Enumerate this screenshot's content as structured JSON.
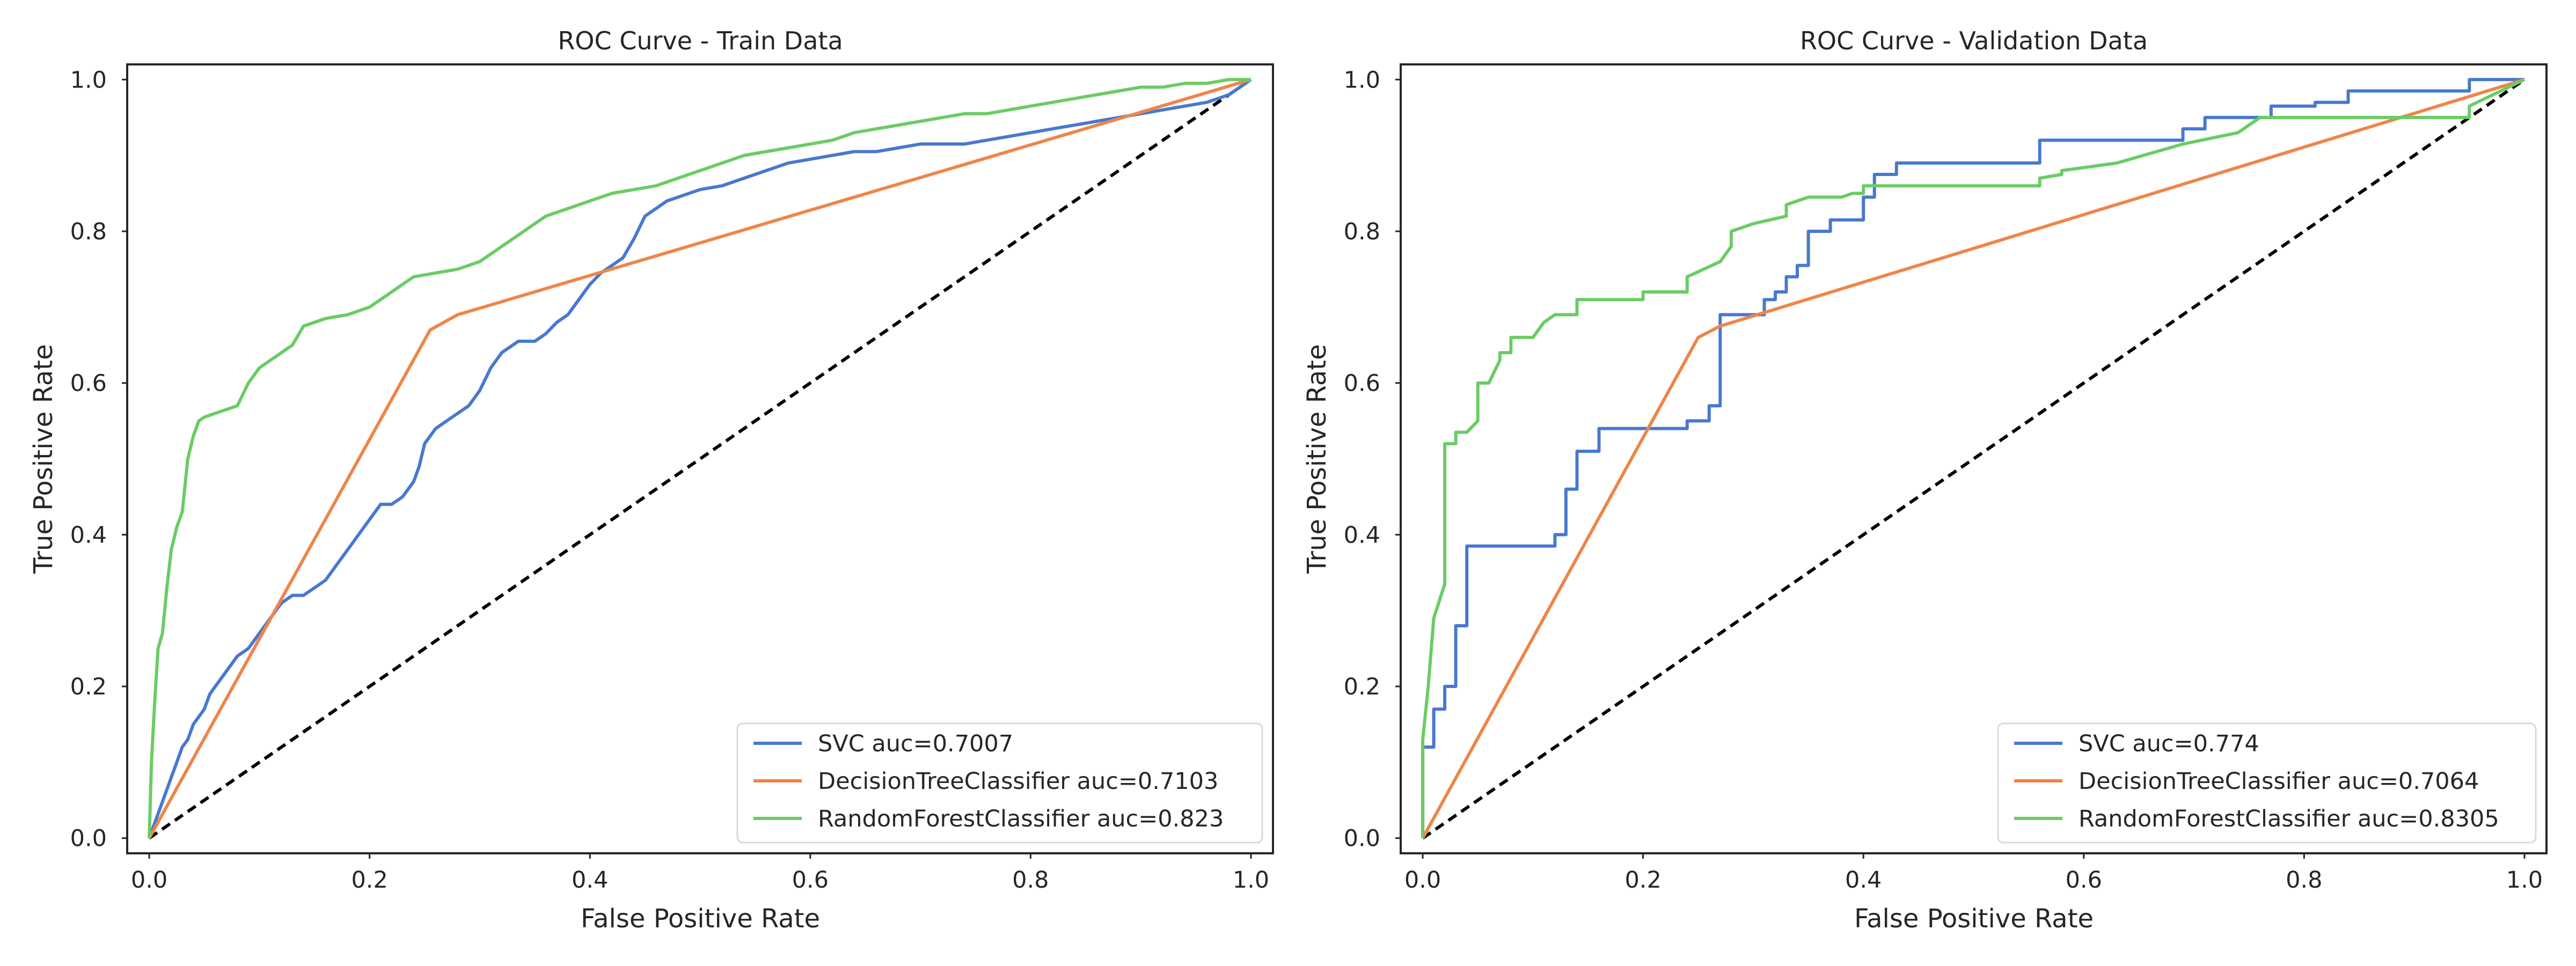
{
  "figure": {
    "colors": {
      "SVC": "#4878d0",
      "DecisionTreeClassifier": "#ee854a",
      "RandomForestClassifier": "#6acc64",
      "reference": "#000000",
      "axes": "#262626"
    }
  },
  "chart_data": [
    {
      "type": "line",
      "title": "ROC Curve - Train Data",
      "xlabel": "False Positive Rate",
      "ylabel": "True Positive Rate",
      "xlim": [
        -0.02,
        1.02
      ],
      "ylim": [
        -0.02,
        1.02
      ],
      "xticks": [
        "0.0",
        "0.2",
        "0.4",
        "0.6",
        "0.8",
        "1.0"
      ],
      "yticks": [
        "0.0",
        "0.2",
        "0.4",
        "0.6",
        "0.8",
        "1.0"
      ],
      "grid": false,
      "legend_position": "lower-right",
      "reference_line": {
        "x": [
          0,
          1
        ],
        "y": [
          0,
          1
        ],
        "style": "dashed"
      },
      "series": [
        {
          "name": "SVC auc=0.7007",
          "x": [
            0.0,
            0.005,
            0.01,
            0.015,
            0.02,
            0.025,
            0.03,
            0.035,
            0.04,
            0.045,
            0.05,
            0.055,
            0.06,
            0.07,
            0.08,
            0.09,
            0.1,
            0.11,
            0.12,
            0.13,
            0.14,
            0.15,
            0.16,
            0.17,
            0.18,
            0.19,
            0.2,
            0.21,
            0.22,
            0.23,
            0.24,
            0.245,
            0.25,
            0.26,
            0.27,
            0.28,
            0.29,
            0.3,
            0.31,
            0.32,
            0.33,
            0.335,
            0.34,
            0.35,
            0.36,
            0.37,
            0.38,
            0.39,
            0.4,
            0.41,
            0.42,
            0.43,
            0.44,
            0.45,
            0.46,
            0.47,
            0.48,
            0.49,
            0.5,
            0.52,
            0.54,
            0.56,
            0.58,
            0.6,
            0.62,
            0.64,
            0.66,
            0.68,
            0.7,
            0.72,
            0.74,
            0.76,
            0.78,
            0.8,
            0.82,
            0.84,
            0.86,
            0.88,
            0.9,
            0.92,
            0.94,
            0.96,
            0.98,
            1.0
          ],
          "y": [
            0.0,
            0.02,
            0.04,
            0.06,
            0.08,
            0.1,
            0.12,
            0.13,
            0.15,
            0.16,
            0.17,
            0.19,
            0.2,
            0.22,
            0.24,
            0.25,
            0.27,
            0.29,
            0.31,
            0.32,
            0.32,
            0.33,
            0.34,
            0.36,
            0.38,
            0.4,
            0.42,
            0.44,
            0.44,
            0.45,
            0.47,
            0.49,
            0.52,
            0.54,
            0.55,
            0.56,
            0.57,
            0.59,
            0.62,
            0.64,
            0.65,
            0.655,
            0.655,
            0.655,
            0.665,
            0.68,
            0.69,
            0.71,
            0.73,
            0.745,
            0.755,
            0.765,
            0.79,
            0.82,
            0.83,
            0.84,
            0.845,
            0.85,
            0.855,
            0.86,
            0.87,
            0.88,
            0.89,
            0.895,
            0.9,
            0.905,
            0.905,
            0.91,
            0.915,
            0.915,
            0.915,
            0.92,
            0.925,
            0.93,
            0.935,
            0.94,
            0.945,
            0.95,
            0.955,
            0.96,
            0.965,
            0.97,
            0.98,
            1.0
          ]
        },
        {
          "name": "DecisionTreeClassifier auc=0.7103",
          "x": [
            0.0,
            0.255,
            0.28,
            1.0
          ],
          "y": [
            0.0,
            0.67,
            0.69,
            1.0
          ]
        },
        {
          "name": "RandomForestClassifier auc=0.823",
          "x": [
            0.0,
            0.002,
            0.005,
            0.008,
            0.012,
            0.016,
            0.02,
            0.025,
            0.03,
            0.035,
            0.04,
            0.045,
            0.05,
            0.06,
            0.07,
            0.08,
            0.09,
            0.1,
            0.11,
            0.12,
            0.13,
            0.14,
            0.15,
            0.16,
            0.18,
            0.2,
            0.22,
            0.24,
            0.26,
            0.28,
            0.3,
            0.32,
            0.34,
            0.36,
            0.38,
            0.4,
            0.42,
            0.44,
            0.46,
            0.48,
            0.5,
            0.52,
            0.54,
            0.56,
            0.58,
            0.6,
            0.62,
            0.64,
            0.66,
            0.68,
            0.7,
            0.72,
            0.74,
            0.76,
            0.78,
            0.8,
            0.82,
            0.84,
            0.86,
            0.88,
            0.9,
            0.92,
            0.94,
            0.96,
            0.98,
            1.0
          ],
          "y": [
            0.0,
            0.1,
            0.18,
            0.25,
            0.27,
            0.33,
            0.38,
            0.41,
            0.43,
            0.5,
            0.53,
            0.55,
            0.555,
            0.56,
            0.565,
            0.57,
            0.6,
            0.62,
            0.63,
            0.64,
            0.65,
            0.675,
            0.68,
            0.685,
            0.69,
            0.7,
            0.72,
            0.74,
            0.745,
            0.75,
            0.76,
            0.78,
            0.8,
            0.82,
            0.83,
            0.84,
            0.85,
            0.855,
            0.86,
            0.87,
            0.88,
            0.89,
            0.9,
            0.905,
            0.91,
            0.915,
            0.92,
            0.93,
            0.935,
            0.94,
            0.945,
            0.95,
            0.955,
            0.955,
            0.96,
            0.965,
            0.97,
            0.975,
            0.98,
            0.985,
            0.99,
            0.99,
            0.995,
            0.995,
            1.0,
            1.0
          ]
        }
      ]
    },
    {
      "type": "line",
      "title": "ROC Curve - Validation Data",
      "xlabel": "False Positive Rate",
      "ylabel": "True Positive Rate",
      "xlim": [
        -0.02,
        1.02
      ],
      "ylim": [
        -0.02,
        1.02
      ],
      "xticks": [
        "0.0",
        "0.2",
        "0.4",
        "0.6",
        "0.8",
        "1.0"
      ],
      "yticks": [
        "0.0",
        "0.2",
        "0.4",
        "0.6",
        "0.8",
        "1.0"
      ],
      "grid": false,
      "legend_position": "lower-right",
      "reference_line": {
        "x": [
          0,
          1
        ],
        "y": [
          0,
          1
        ],
        "style": "dashed"
      },
      "series": [
        {
          "name": "SVC auc=0.774",
          "x": [
            0.0,
            0.0,
            0.01,
            0.01,
            0.02,
            0.02,
            0.03,
            0.03,
            0.04,
            0.04,
            0.12,
            0.12,
            0.13,
            0.13,
            0.14,
            0.14,
            0.16,
            0.16,
            0.24,
            0.24,
            0.26,
            0.26,
            0.27,
            0.27,
            0.31,
            0.31,
            0.32,
            0.32,
            0.33,
            0.33,
            0.34,
            0.34,
            0.35,
            0.35,
            0.37,
            0.37,
            0.4,
            0.4,
            0.41,
            0.41,
            0.43,
            0.43,
            0.56,
            0.56,
            0.69,
            0.69,
            0.71,
            0.71,
            0.77,
            0.77,
            0.79,
            0.79,
            0.81,
            0.81,
            0.84,
            0.84,
            0.95,
            0.95,
            1.0
          ],
          "y": [
            0.0,
            0.12,
            0.12,
            0.17,
            0.17,
            0.2,
            0.2,
            0.28,
            0.28,
            0.385,
            0.385,
            0.4,
            0.4,
            0.46,
            0.46,
            0.51,
            0.51,
            0.54,
            0.54,
            0.55,
            0.55,
            0.57,
            0.57,
            0.69,
            0.69,
            0.71,
            0.71,
            0.72,
            0.72,
            0.74,
            0.74,
            0.755,
            0.755,
            0.8,
            0.8,
            0.815,
            0.815,
            0.845,
            0.845,
            0.875,
            0.875,
            0.89,
            0.89,
            0.92,
            0.92,
            0.935,
            0.935,
            0.95,
            0.95,
            0.965,
            0.965,
            0.965,
            0.965,
            0.97,
            0.97,
            0.985,
            0.985,
            1.0,
            1.0
          ]
        },
        {
          "name": "DecisionTreeClassifier auc=0.7064",
          "x": [
            0.0,
            0.25,
            0.27,
            1.0
          ],
          "y": [
            0.0,
            0.66,
            0.675,
            1.0
          ]
        },
        {
          "name": "RandomForestClassifier auc=0.8305",
          "x": [
            0.0,
            0.0,
            0.005,
            0.01,
            0.02,
            0.02,
            0.03,
            0.03,
            0.04,
            0.05,
            0.05,
            0.06,
            0.07,
            0.07,
            0.08,
            0.08,
            0.1,
            0.11,
            0.12,
            0.14,
            0.14,
            0.2,
            0.2,
            0.24,
            0.24,
            0.27,
            0.28,
            0.28,
            0.3,
            0.33,
            0.33,
            0.35,
            0.38,
            0.39,
            0.4,
            0.4,
            0.44,
            0.56,
            0.56,
            0.58,
            0.58,
            0.63,
            0.69,
            0.74,
            0.75,
            0.76,
            0.95,
            0.95,
            1.0
          ],
          "y": [
            0.0,
            0.13,
            0.2,
            0.29,
            0.335,
            0.52,
            0.52,
            0.535,
            0.535,
            0.55,
            0.6,
            0.6,
            0.63,
            0.64,
            0.64,
            0.66,
            0.66,
            0.68,
            0.69,
            0.69,
            0.71,
            0.71,
            0.72,
            0.72,
            0.74,
            0.76,
            0.78,
            0.8,
            0.81,
            0.82,
            0.835,
            0.845,
            0.845,
            0.85,
            0.85,
            0.86,
            0.86,
            0.86,
            0.87,
            0.875,
            0.88,
            0.89,
            0.915,
            0.93,
            0.94,
            0.95,
            0.95,
            0.965,
            1.0
          ]
        }
      ]
    }
  ]
}
